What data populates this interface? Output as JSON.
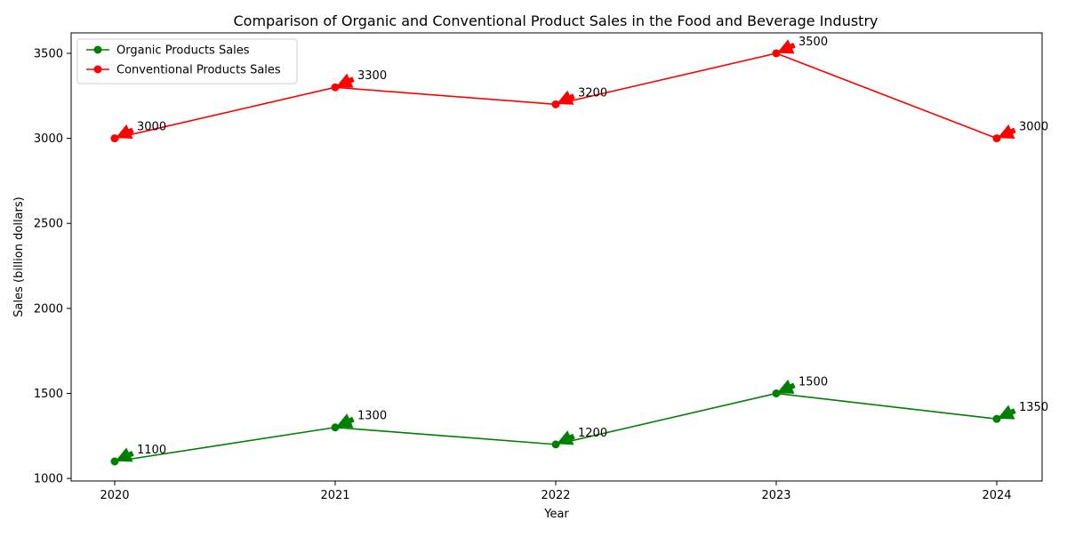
{
  "chart_data": {
    "type": "line",
    "title": "Comparison of Organic and Conventional Product Sales in the Food and Beverage Industry",
    "xlabel": "Year",
    "ylabel": "Sales (billion dollars)",
    "categories": [
      "2020",
      "2021",
      "2022",
      "2023",
      "2024"
    ],
    "yticks": [
      1000,
      1500,
      2000,
      2500,
      3000,
      3500
    ],
    "ylim": [
      985,
      3620
    ],
    "grid": false,
    "legend_position": "top-left",
    "series": [
      {
        "name": "Organic Products Sales",
        "color": "#008000",
        "values": [
          1100,
          1300,
          1200,
          1500,
          1350
        ]
      },
      {
        "name": "Conventional Products Sales",
        "color": "#ff0000",
        "values": [
          3000,
          3300,
          3200,
          3500,
          3000
        ]
      }
    ]
  }
}
